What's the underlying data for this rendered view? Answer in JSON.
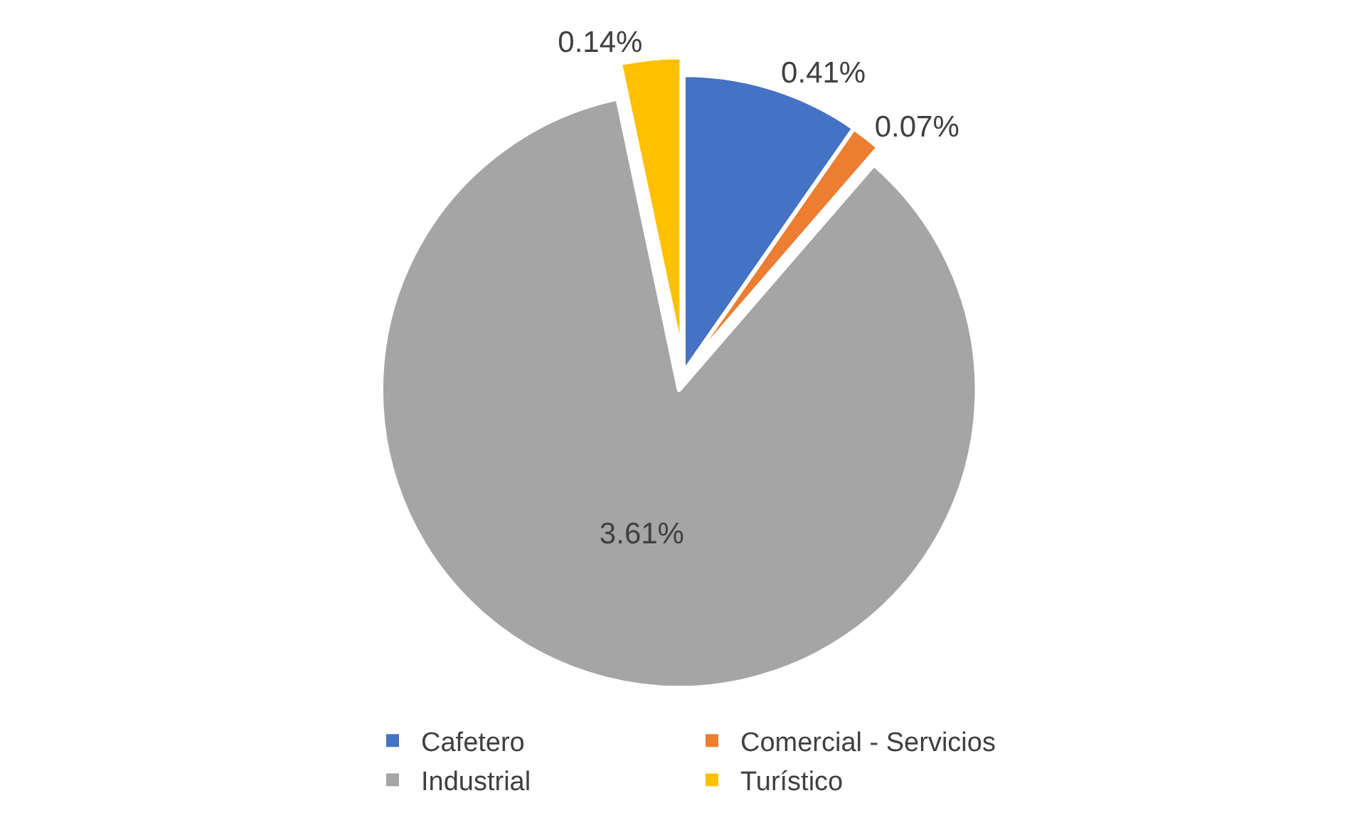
{
  "chart_data": {
    "type": "pie",
    "categories": [
      "Cafetero",
      "Comercial - Servicios",
      "Industrial",
      "Turístico"
    ],
    "values": [
      0.41,
      0.07,
      3.61,
      0.14
    ],
    "colors": [
      "#4472c4",
      "#ed7d31",
      "#a5a5a5",
      "#ffc000"
    ],
    "value_labels": [
      "0.41%",
      "0.07%",
      "3.61%",
      "0.14%"
    ],
    "legend": "bottom"
  }
}
